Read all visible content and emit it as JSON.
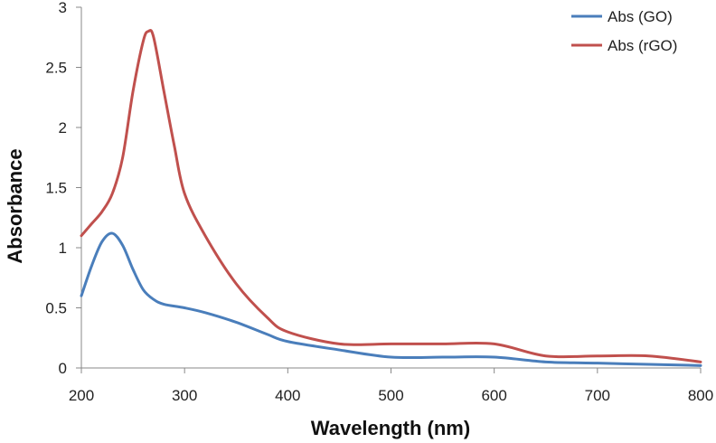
{
  "chart_data": {
    "type": "line",
    "title": "",
    "xlabel": "Wavelength (nm)",
    "ylabel": "Absorbance",
    "xlim": [
      200,
      800
    ],
    "ylim": [
      0,
      3
    ],
    "xticks": [
      200,
      300,
      400,
      500,
      600,
      700,
      800
    ],
    "yticks": [
      0,
      0.5,
      1,
      1.5,
      2,
      2.5,
      3
    ],
    "ytick_labels": [
      "0",
      "0.5",
      "1",
      "1.5",
      "2",
      "2.5",
      "3"
    ],
    "grid": false,
    "legend_position": "top-right",
    "series": [
      {
        "name": "Abs (GO)",
        "color": "#4a7ebb",
        "x": [
          200,
          210,
          220,
          230,
          240,
          250,
          260,
          270,
          280,
          300,
          320,
          350,
          380,
          400,
          450,
          500,
          550,
          600,
          650,
          700,
          750,
          800
        ],
        "y": [
          0.6,
          0.85,
          1.05,
          1.12,
          1.02,
          0.82,
          0.65,
          0.57,
          0.53,
          0.5,
          0.46,
          0.38,
          0.28,
          0.22,
          0.15,
          0.09,
          0.09,
          0.09,
          0.05,
          0.04,
          0.03,
          0.02
        ]
      },
      {
        "name": "Abs (rGO)",
        "color": "#c0504d",
        "x": [
          200,
          210,
          220,
          230,
          240,
          250,
          260,
          265,
          270,
          280,
          290,
          300,
          320,
          350,
          380,
          400,
          450,
          500,
          550,
          600,
          650,
          700,
          750,
          800
        ],
        "y": [
          1.1,
          1.2,
          1.3,
          1.45,
          1.75,
          2.3,
          2.72,
          2.8,
          2.75,
          2.3,
          1.85,
          1.45,
          1.1,
          0.7,
          0.42,
          0.3,
          0.2,
          0.2,
          0.2,
          0.2,
          0.1,
          0.1,
          0.1,
          0.05
        ]
      }
    ]
  }
}
